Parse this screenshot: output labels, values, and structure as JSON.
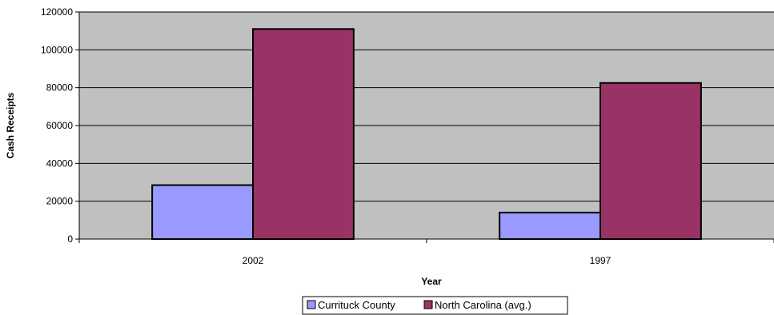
{
  "chart_data": {
    "type": "bar",
    "categories": [
      "2002",
      "1997"
    ],
    "series": [
      {
        "name": "Currituck County",
        "values": [
          28500,
          14000
        ],
        "color": "#9999ff"
      },
      {
        "name": "North Carolina (avg.)",
        "values": [
          111000,
          82500
        ],
        "color": "#993366"
      }
    ],
    "xlabel": "Year",
    "ylabel": "Cash Receipts",
    "ylim": [
      0,
      120000
    ],
    "yticks": [
      0,
      20000,
      40000,
      60000,
      80000,
      100000,
      120000
    ],
    "grid": true,
    "plot_background": "#c0c0c0",
    "legend_position": "bottom"
  }
}
